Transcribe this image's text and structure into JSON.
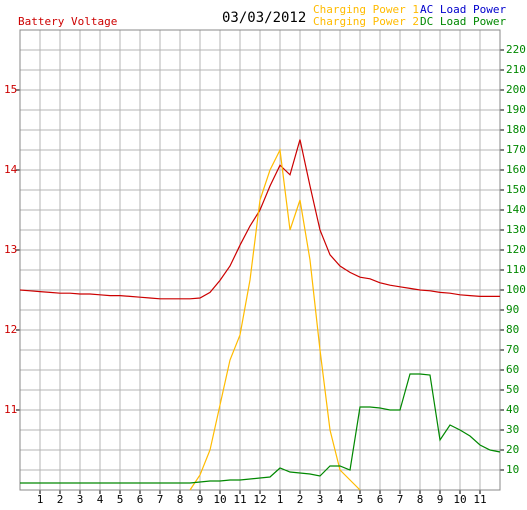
{
  "chart_data": {
    "type": "line",
    "title": "03/03/2012",
    "y_label": "Battery Voltage",
    "x": [
      0,
      0.5,
      1,
      1.5,
      2,
      2.5,
      3,
      3.5,
      4,
      4.5,
      5,
      5.5,
      6,
      6.5,
      7,
      7.5,
      8,
      8.5,
      9,
      9.5,
      10,
      10.5,
      11,
      11.5,
      12,
      12.5,
      13,
      13.5,
      14,
      14.5,
      15,
      15.5,
      16,
      16.5,
      17,
      17.5,
      18,
      18.5,
      19,
      19.5,
      20,
      20.5,
      21,
      21.5,
      22,
      22.5,
      23,
      23.5,
      24
    ],
    "xlim": [
      0,
      24
    ],
    "xticks": [
      1,
      2,
      3,
      4,
      5,
      6,
      7,
      8,
      9,
      10,
      11,
      12,
      {
        "value": 13,
        "label": "1"
      },
      {
        "value": 14,
        "label": "2"
      },
      {
        "value": 15,
        "label": "3"
      },
      {
        "value": 16,
        "label": "4"
      },
      {
        "value": 17,
        "label": "5"
      },
      {
        "value": 18,
        "label": "6"
      },
      {
        "value": 19,
        "label": "7"
      },
      {
        "value": 20,
        "label": "8"
      },
      {
        "value": 21,
        "label": "9"
      },
      {
        "value": 22,
        "label": "10"
      },
      {
        "value": 23,
        "label": "11"
      }
    ],
    "ylim": [
      10,
      15.75
    ],
    "yticks": [
      11,
      12,
      13,
      14,
      15
    ],
    "y2lim": [
      0,
      230
    ],
    "y2ticks": [
      10,
      20,
      30,
      40,
      50,
      60,
      70,
      80,
      90,
      100,
      110,
      120,
      130,
      140,
      150,
      160,
      170,
      180,
      190,
      200,
      210,
      220
    ],
    "grid": true,
    "y_color": "#cc0000",
    "y2_color": "#008800",
    "series": [
      {
        "name": "Battery Voltage",
        "color": "#cc0000",
        "axis": "y",
        "values": [
          12.5,
          12.49,
          12.48,
          12.47,
          12.46,
          12.46,
          12.45,
          12.45,
          12.44,
          12.43,
          12.43,
          12.42,
          12.41,
          12.4,
          12.39,
          12.39,
          12.39,
          12.39,
          12.4,
          12.47,
          12.62,
          12.8,
          13.06,
          13.3,
          13.5,
          13.8,
          14.06,
          13.94,
          14.38,
          13.8,
          13.25,
          12.94,
          12.8,
          12.72,
          12.66,
          12.64,
          12.59,
          12.56,
          12.54,
          12.52,
          12.5,
          12.49,
          12.47,
          12.46,
          12.44,
          12.43,
          12.42,
          12.42,
          12.42
        ]
      },
      {
        "name": "Charging Power 1",
        "color": "#ffbb00",
        "axis": "y2",
        "values": [
          null,
          null,
          null,
          null,
          null,
          null,
          null,
          null,
          null,
          null,
          null,
          null,
          null,
          null,
          null,
          null,
          null,
          0,
          7.5,
          20,
          42.5,
          65,
          77.5,
          105,
          145,
          160,
          170,
          130,
          145,
          115,
          70,
          30,
          10,
          5,
          0,
          null,
          null,
          null,
          null,
          null,
          null,
          null,
          null,
          null,
          null,
          null,
          null,
          null,
          null
        ]
      },
      {
        "name": "Charging Power 2",
        "color": "#ffbb00",
        "axis": "y2",
        "values": [
          null,
          null,
          null,
          null,
          null,
          null,
          null,
          null,
          null,
          null,
          null,
          null,
          null,
          null,
          null,
          null,
          null,
          null,
          null,
          null,
          null,
          null,
          null,
          null,
          null,
          null,
          null,
          null,
          null,
          null,
          null,
          null,
          null,
          null,
          null,
          null,
          null,
          null,
          null,
          null,
          null,
          null,
          null,
          null,
          null,
          null,
          null,
          null,
          null
        ]
      },
      {
        "name": "AC Load Power",
        "color": "#0000cc",
        "axis": "y2",
        "values": [
          null,
          null,
          null,
          null,
          null,
          null,
          null,
          null,
          null,
          null,
          null,
          null,
          null,
          null,
          null,
          null,
          null,
          null,
          null,
          null,
          null,
          null,
          null,
          null,
          null,
          null,
          null,
          null,
          null,
          null,
          null,
          null,
          null,
          null,
          null,
          null,
          null,
          null,
          null,
          null,
          null,
          null,
          null,
          null,
          null,
          null,
          null,
          null,
          null
        ]
      },
      {
        "name": "DC Load Power",
        "color": "#008800",
        "axis": "y2",
        "values": [
          3.5,
          3.5,
          3.5,
          3.5,
          3.5,
          3.5,
          3.5,
          3.5,
          3.5,
          3.5,
          3.5,
          3.5,
          3.5,
          3.5,
          3.5,
          3.5,
          3.5,
          3.5,
          4,
          4.5,
          4.5,
          5,
          5,
          5.5,
          6,
          6.5,
          11,
          9,
          8.5,
          8,
          7,
          12,
          12,
          10,
          41.5,
          41.5,
          41,
          40,
          40,
          58,
          58,
          57.5,
          25,
          32.5,
          30,
          27,
          22.5,
          20,
          19
        ]
      }
    ]
  }
}
